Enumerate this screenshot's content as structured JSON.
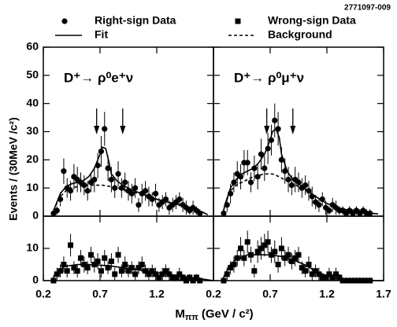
{
  "figure_id": "2771097-009",
  "y_label": "Events / (30MeV /c²)",
  "x_label": {
    "symbol": "M",
    "subscript": "ππ",
    "unit": " (GeV / c²)"
  },
  "chart_data": [
    {
      "type": "scatter",
      "annotation": "D⁺→ ρ⁰e⁺ν",
      "arrows": [
        0.67,
        0.9
      ],
      "xlim": [
        0.2,
        1.7
      ],
      "ylim": [
        0,
        60
      ],
      "yticks": [
        0,
        10,
        20,
        30,
        40,
        50,
        60
      ],
      "x": [
        0.29,
        0.32,
        0.35,
        0.38,
        0.41,
        0.44,
        0.47,
        0.5,
        0.53,
        0.56,
        0.59,
        0.62,
        0.65,
        0.68,
        0.71,
        0.74,
        0.77,
        0.8,
        0.83,
        0.86,
        0.89,
        0.92,
        0.95,
        0.98,
        1.01,
        1.04,
        1.07,
        1.1,
        1.13,
        1.16,
        1.19,
        1.22,
        1.25,
        1.28,
        1.31,
        1.34,
        1.37,
        1.4,
        1.43,
        1.46,
        1.49,
        1.52,
        1.55,
        1.58
      ],
      "series": [
        {
          "name": "Right-sign Data",
          "marker": "circle",
          "color": "#000000",
          "values": [
            1,
            2,
            6,
            16,
            10,
            9,
            14,
            13,
            12,
            11,
            9,
            12,
            13,
            18,
            23,
            31,
            17,
            13,
            10,
            15,
            10,
            12,
            9,
            8,
            10,
            4,
            8,
            9,
            7,
            6,
            8,
            4,
            5,
            6,
            3,
            4,
            5,
            6,
            4,
            3,
            2,
            3,
            2,
            1
          ],
          "errors": [
            1.5,
            1.5,
            2.5,
            4.5,
            3.5,
            3.5,
            4.5,
            4.5,
            3.5,
            3.5,
            3.5,
            3.5,
            4.5,
            4.5,
            5.5,
            6,
            4.5,
            4.5,
            3.5,
            4.5,
            3.5,
            3.5,
            3.5,
            3.5,
            3.5,
            2.5,
            3.5,
            3.5,
            3.5,
            2.5,
            3.5,
            2.5,
            2.5,
            2.5,
            2.5,
            2.5,
            2.5,
            2.5,
            2.5,
            2.5,
            1.5,
            2.5,
            1.5,
            1.5
          ]
        },
        {
          "name": "Fit",
          "line": "solid",
          "color": "#000000",
          "x": [
            0.28,
            0.3,
            0.35,
            0.4,
            0.45,
            0.5,
            0.55,
            0.6,
            0.65,
            0.7,
            0.72,
            0.75,
            0.78,
            0.8,
            0.85,
            0.9,
            0.95,
            1.0,
            1.1,
            1.2,
            1.3,
            1.4,
            1.5,
            1.6,
            1.65
          ],
          "values": [
            0,
            3,
            8,
            10.5,
            11.5,
            12,
            12.5,
            14,
            17,
            22,
            24.5,
            24,
            19,
            15,
            12.5,
            11,
            10,
            9,
            7.5,
            6,
            5,
            4,
            3,
            1.5,
            0.5
          ]
        },
        {
          "name": "Background",
          "line": "dashed",
          "color": "#000000",
          "x": [
            0.28,
            0.3,
            0.35,
            0.4,
            0.45,
            0.5,
            0.55,
            0.6,
            0.65,
            0.7,
            0.72,
            0.75,
            0.78,
            0.8,
            0.85,
            0.9,
            0.95,
            1.0,
            1.1,
            1.2,
            1.3,
            1.4,
            1.5,
            1.6,
            1.65
          ],
          "values": [
            0,
            3,
            7,
            9,
            10,
            10.5,
            11,
            11,
            11,
            11,
            11,
            10.8,
            10.6,
            10.5,
            10,
            9.5,
            9,
            8.5,
            7.5,
            6,
            5,
            4,
            3,
            1.5,
            0.5
          ]
        }
      ]
    },
    {
      "type": "scatter",
      "annotation": "D⁺→ ρ⁰μ⁺ν",
      "arrows": [
        0.67,
        0.9
      ],
      "xlim": [
        0.2,
        1.7
      ],
      "ylim": [
        0,
        60
      ],
      "x": [
        0.29,
        0.32,
        0.35,
        0.38,
        0.41,
        0.44,
        0.47,
        0.5,
        0.53,
        0.56,
        0.59,
        0.62,
        0.65,
        0.68,
        0.71,
        0.74,
        0.77,
        0.8,
        0.83,
        0.86,
        0.89,
        0.92,
        0.95,
        0.98,
        1.01,
        1.04,
        1.07,
        1.1,
        1.13,
        1.16,
        1.19,
        1.22,
        1.25,
        1.28,
        1.31,
        1.34,
        1.37,
        1.4,
        1.43,
        1.46,
        1.49,
        1.52,
        1.55,
        1.58
      ],
      "series": [
        {
          "marker": "circle",
          "color": "#000000",
          "values": [
            1,
            4,
            8,
            12,
            15,
            14,
            19,
            19,
            12,
            17,
            14,
            22,
            17,
            24,
            27,
            34,
            31,
            20,
            16,
            13,
            11,
            13,
            12,
            10,
            11,
            9,
            7,
            5,
            4,
            6,
            3,
            2,
            4,
            3,
            2,
            2,
            1,
            2,
            1,
            2,
            1,
            2,
            1,
            1
          ],
          "errors": [
            1.5,
            2.5,
            3.5,
            3.5,
            4.5,
            4.5,
            4.5,
            4.5,
            3.5,
            4.5,
            4.5,
            5.5,
            4.5,
            5.5,
            5.5,
            6,
            6,
            4.5,
            4.5,
            4.5,
            3.5,
            4.5,
            3.5,
            3.5,
            3.5,
            3.5,
            3.5,
            2.5,
            2.5,
            2.5,
            2.5,
            1.5,
            2.5,
            2.5,
            1.5,
            1.5,
            1.5,
            1.5,
            1.5,
            1.5,
            1.5,
            1.5,
            1.5,
            1.5
          ]
        },
        {
          "line": "solid",
          "color": "#000000",
          "x": [
            0.28,
            0.3,
            0.35,
            0.4,
            0.45,
            0.5,
            0.55,
            0.6,
            0.65,
            0.7,
            0.72,
            0.75,
            0.78,
            0.8,
            0.85,
            0.9,
            0.95,
            1.0,
            1.1,
            1.2,
            1.3,
            1.4,
            1.5,
            1.6,
            1.65
          ],
          "values": [
            0,
            4,
            10,
            13,
            15,
            16,
            17,
            19,
            22,
            27,
            30,
            31,
            28,
            22,
            16,
            13,
            11.5,
            10,
            7,
            4.5,
            3,
            2,
            1.5,
            1,
            0.8
          ]
        },
        {
          "line": "dashed",
          "color": "#000000",
          "x": [
            0.28,
            0.3,
            0.35,
            0.4,
            0.45,
            0.5,
            0.55,
            0.6,
            0.65,
            0.7,
            0.72,
            0.75,
            0.78,
            0.8,
            0.85,
            0.9,
            0.95,
            1.0,
            1.1,
            1.2,
            1.3,
            1.4,
            1.5,
            1.6,
            1.65
          ],
          "values": [
            0,
            4,
            9,
            11,
            12,
            13,
            14,
            14.5,
            15,
            15,
            15,
            14.5,
            14,
            13.5,
            12.5,
            11.5,
            10.5,
            9.5,
            7,
            4.5,
            3,
            2,
            1.5,
            1,
            0.8
          ]
        }
      ]
    },
    {
      "type": "scatter",
      "xlim": [
        0.2,
        1.7
      ],
      "xticks": [
        0.2,
        0.7,
        1.2
      ],
      "ylim": [
        0,
        20
      ],
      "yticks": [
        0,
        10
      ],
      "x": [
        0.29,
        0.32,
        0.35,
        0.38,
        0.41,
        0.44,
        0.47,
        0.5,
        0.53,
        0.56,
        0.59,
        0.62,
        0.65,
        0.68,
        0.71,
        0.74,
        0.77,
        0.8,
        0.83,
        0.86,
        0.89,
        0.92,
        0.95,
        0.98,
        1.01,
        1.04,
        1.07,
        1.1,
        1.13,
        1.16,
        1.19,
        1.22,
        1.25,
        1.28,
        1.31,
        1.34,
        1.37,
        1.4,
        1.43,
        1.46,
        1.49,
        1.52,
        1.55,
        1.58
      ],
      "series": [
        {
          "name": "Wrong-sign Data",
          "marker": "square",
          "color": "#000000",
          "values": [
            0,
            2,
            3,
            5,
            3,
            11,
            4,
            3,
            7,
            5,
            4,
            8,
            5,
            6,
            3,
            7,
            4,
            6,
            2,
            8,
            3,
            5,
            3,
            4,
            2,
            4,
            5,
            3,
            2,
            3,
            2,
            1,
            2,
            3,
            2,
            1,
            1,
            2,
            1,
            0,
            1,
            0,
            1,
            0
          ],
          "errors": [
            1,
            2,
            2,
            2.5,
            2,
            3.5,
            2,
            2,
            2.5,
            2.5,
            2,
            2.5,
            2.5,
            2.5,
            2,
            2.5,
            2,
            2.5,
            2,
            2.5,
            2,
            2.5,
            2,
            2,
            2,
            2,
            2.5,
            2,
            2,
            2,
            2,
            1,
            2,
            2,
            2,
            1,
            1,
            2,
            1,
            1,
            1,
            1,
            1,
            1
          ]
        },
        {
          "line": "solid",
          "color": "#000000",
          "x": [
            0.28,
            0.3,
            0.35,
            0.4,
            0.5,
            0.6,
            0.7,
            0.8,
            0.9,
            1.0,
            1.1,
            1.2,
            1.3,
            1.4,
            1.5,
            1.6,
            1.7
          ],
          "values": [
            0,
            2,
            3.5,
            4.5,
            5,
            5,
            4.8,
            4.5,
            4,
            3.5,
            3,
            2.5,
            2,
            1.5,
            1,
            0.5,
            0
          ]
        }
      ]
    },
    {
      "type": "scatter",
      "xlim": [
        0.2,
        1.7
      ],
      "xticks": [
        0.2,
        0.7,
        1.2,
        1.7
      ],
      "ylim": [
        0,
        20
      ],
      "x": [
        0.29,
        0.32,
        0.35,
        0.38,
        0.41,
        0.44,
        0.47,
        0.5,
        0.53,
        0.56,
        0.59,
        0.62,
        0.65,
        0.68,
        0.71,
        0.74,
        0.77,
        0.8,
        0.83,
        0.86,
        0.89,
        0.92,
        0.95,
        0.98,
        1.01,
        1.04,
        1.07,
        1.1,
        1.13,
        1.16,
        1.19,
        1.22,
        1.25,
        1.28,
        1.31,
        1.34,
        1.37,
        1.4,
        1.43,
        1.46,
        1.49,
        1.52,
        1.55,
        1.58
      ],
      "series": [
        {
          "marker": "square",
          "color": "#000000",
          "values": [
            0,
            2,
            4,
            5,
            7,
            10,
            7,
            12,
            8,
            3,
            9,
            10,
            11,
            12,
            8,
            9,
            5,
            10,
            7,
            8,
            6,
            7,
            8,
            4,
            3,
            5,
            2,
            3,
            2,
            1,
            1,
            2,
            1,
            2,
            1,
            0,
            0,
            0,
            0,
            0,
            0,
            0,
            0,
            0
          ],
          "errors": [
            1,
            2,
            2,
            2.5,
            2.5,
            3.5,
            2.5,
            3.5,
            2.5,
            2,
            3.5,
            3.5,
            3.5,
            3.5,
            2.5,
            3.5,
            2.5,
            3.5,
            2.5,
            2.5,
            2.5,
            2.5,
            2.5,
            2,
            2,
            2.5,
            2,
            2,
            2,
            1,
            1,
            2,
            1,
            2,
            1,
            1,
            1,
            1,
            1,
            1,
            1,
            1,
            1,
            1
          ]
        },
        {
          "line": "solid",
          "color": "#000000",
          "x": [
            0.28,
            0.3,
            0.35,
            0.4,
            0.5,
            0.6,
            0.7,
            0.8,
            0.9,
            1.0,
            1.1,
            1.2,
            1.3,
            1.4,
            1.5,
            1.6,
            1.7
          ],
          "values": [
            0,
            2,
            5,
            6.5,
            8,
            8,
            8,
            7.5,
            6.5,
            5,
            3,
            1.5,
            0.5,
            0,
            0,
            0,
            0
          ]
        }
      ]
    }
  ]
}
